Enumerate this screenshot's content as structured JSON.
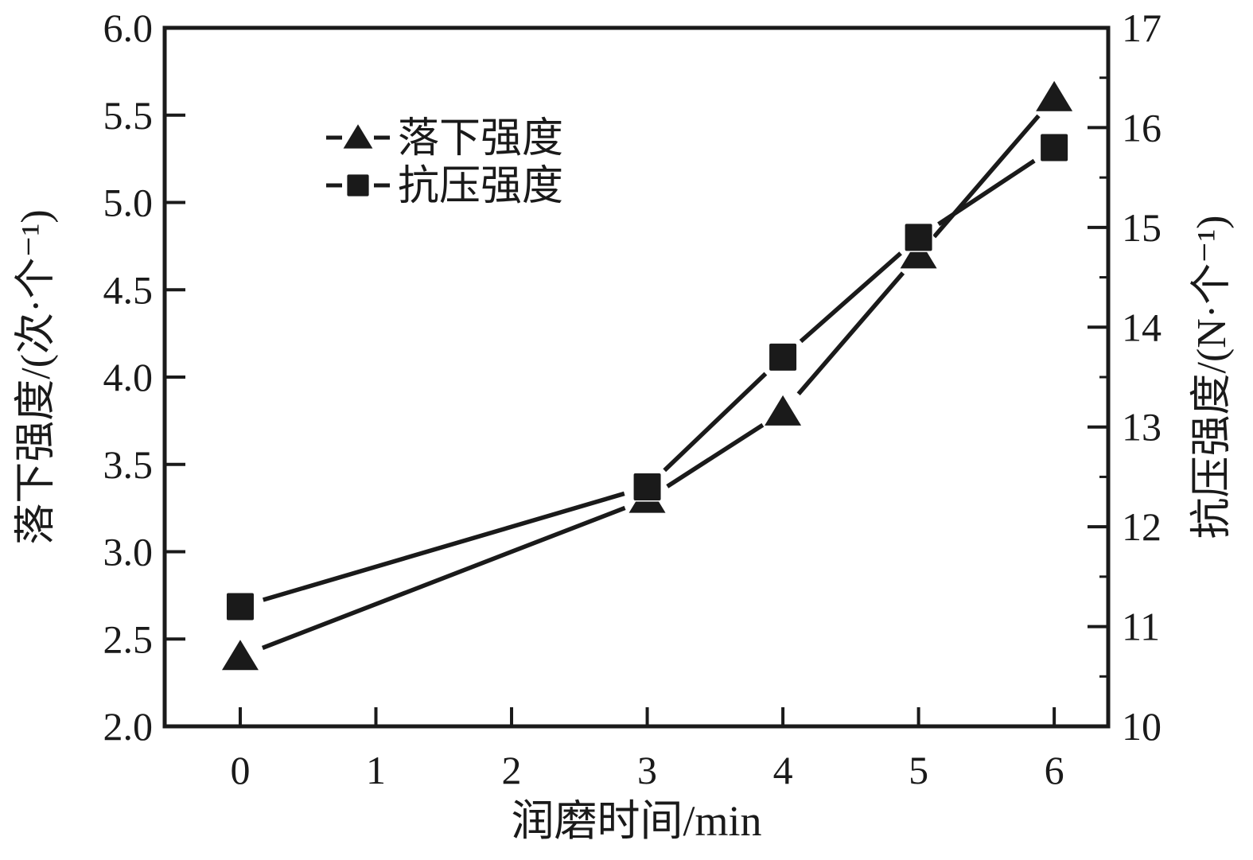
{
  "chart_data": {
    "type": "line",
    "x": [
      0,
      3,
      4,
      5,
      6
    ],
    "series": [
      {
        "name": "落下强度",
        "axis": "left",
        "marker": "triangle",
        "values": [
          2.4,
          3.3,
          3.8,
          4.7,
          5.6
        ]
      },
      {
        "name": "抗压强度",
        "axis": "right",
        "marker": "square",
        "values": [
          11.2,
          12.4,
          13.7,
          14.9,
          15.8
        ]
      }
    ],
    "xlabel": "润磨时间/min",
    "ylabel_left": "落下强度/(次·个⁻¹)",
    "ylabel_right": "抗压强度/(N·个⁻¹)",
    "xlim": [
      -0.557,
      6.398
    ],
    "ylim_left": [
      2.0,
      6.0
    ],
    "ylim_right": [
      10,
      17
    ],
    "xticks": {
      "values": [
        0,
        1,
        2,
        3,
        4,
        5,
        6
      ],
      "labels": [
        "0",
        "1",
        "2",
        "3",
        "4",
        "5",
        "6"
      ]
    },
    "yticks_left": {
      "values": [
        2.0,
        2.5,
        3.0,
        3.5,
        4.0,
        4.5,
        5.0,
        5.5,
        6.0
      ],
      "labels": [
        "2.0",
        "2.5",
        "3.0",
        "3.5",
        "4.0",
        "4.5",
        "5.0",
        "5.5",
        "6.0"
      ]
    },
    "yticks_right": {
      "values": [
        10,
        11,
        12,
        13,
        14,
        15,
        16,
        17
      ],
      "labels": [
        "10",
        "11",
        "12",
        "13",
        "14",
        "15",
        "16",
        "17"
      ],
      "minor": [
        10.5,
        11.5,
        12.5,
        13.5,
        14.5,
        15.5,
        16.5
      ]
    },
    "legend": {
      "position": "upper-left-inside",
      "items": [
        {
          "marker": "triangle",
          "label": "落下强度"
        },
        {
          "marker": "square",
          "label": "抗压强度"
        }
      ]
    },
    "grid": false,
    "colors": {
      "line": "#1a1a1a",
      "marker_halo": "#ffffff",
      "background": "#ffffff"
    }
  }
}
